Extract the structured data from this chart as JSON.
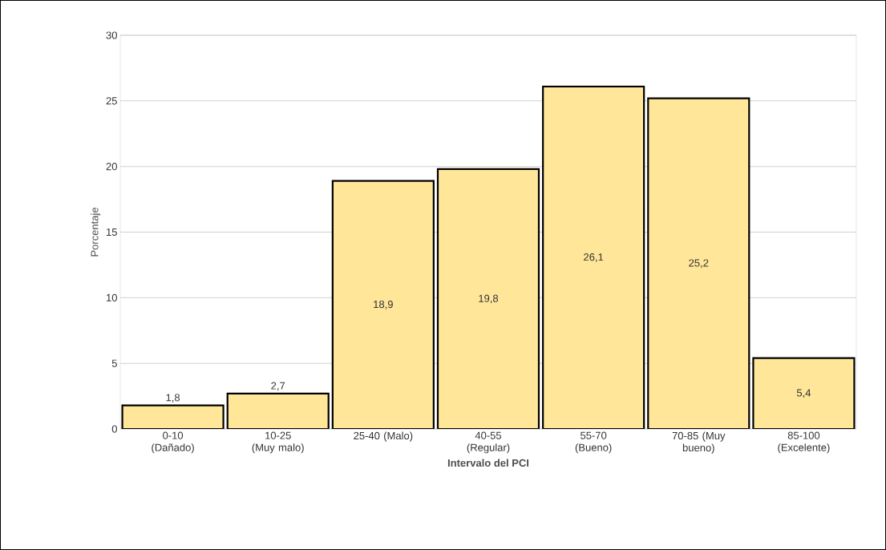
{
  "chart_data": {
    "type": "bar",
    "xlabel": "Intervalo del PCI",
    "ylabel": "Porcentaje",
    "categories": [
      "0-10 (Dañado)",
      "10-25 (Muy malo)",
      "25-40 (Malo)",
      "40-55 (Regular)",
      "55-70 (Bueno)",
      "70-85 (Muy bueno)",
      "85-100 (Excelente)"
    ],
    "values": [
      1.8,
      2.7,
      18.9,
      19.8,
      26.1,
      25.2,
      5.4
    ],
    "value_labels": [
      "1,8",
      "2,7",
      "18,9",
      "19,8",
      "26,1",
      "25,2",
      "5,4"
    ],
    "color": "#ffe699",
    "ylim": [
      0,
      30
    ],
    "yticks": [
      0,
      5,
      10,
      15,
      20,
      25,
      30
    ],
    "grid": "y"
  }
}
